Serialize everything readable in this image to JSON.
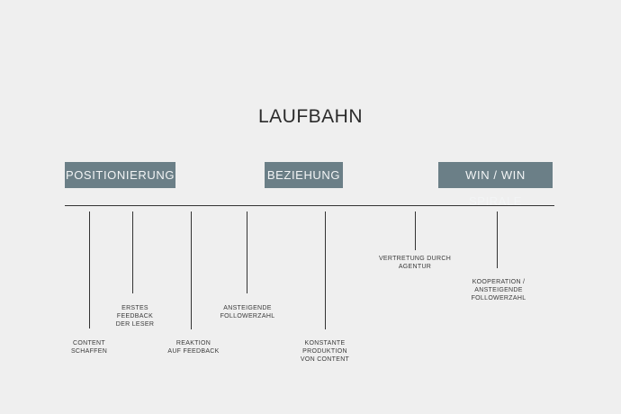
{
  "title": "LAUFBAHN",
  "phases": [
    {
      "label": "POSITIONIERUNG",
      "color": "#6b7f87"
    },
    {
      "label": "BEZIEHUNG",
      "color": "#6b7f87"
    },
    {
      "label": "WIN / WIN SPIRALE",
      "color": "#6b7f87"
    }
  ],
  "milestones": [
    {
      "label": "CONTENT\nSCHAFFEN"
    },
    {
      "label": "ERSTES\nFEEDBACK\nDER LESER"
    },
    {
      "label": "REAKTION\nAUF FEEDBACK"
    },
    {
      "label": "ANSTEIGENDE\nFOLLOWERZAHL"
    },
    {
      "label": "KONSTANTE\nPRODUKTION\nVON CONTENT"
    },
    {
      "label": "VERTRETUNG DURCH\nAGENTUR"
    },
    {
      "label": "KOOPERATION /\nANSTEIGENDE\nFOLLOWERZAHL"
    }
  ]
}
